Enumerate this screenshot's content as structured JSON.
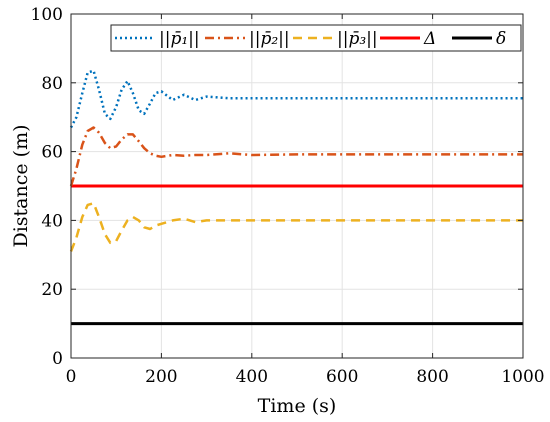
{
  "chart_data": {
    "type": "line",
    "xlabel": "Time (s)",
    "ylabel": "Distance (m)",
    "xlim": [
      0,
      1000
    ],
    "ylim": [
      0,
      100
    ],
    "xticks": [
      0,
      200,
      400,
      600,
      800,
      1000
    ],
    "yticks": [
      0,
      20,
      40,
      60,
      80,
      100
    ],
    "xtick_labels": [
      "0",
      "200",
      "400",
      "600",
      "800",
      "1000"
    ],
    "ytick_labels": [
      "0",
      "20",
      "40",
      "60",
      "80",
      "100"
    ],
    "grid": true,
    "legend_position": "top",
    "series": [
      {
        "name": "||p̄₁||",
        "color": "#0072BD",
        "style": "dotted",
        "x": [
          0,
          12,
          25,
          37,
          50,
          62,
          75,
          87,
          100,
          112,
          125,
          137,
          150,
          162,
          175,
          187,
          200,
          225,
          250,
          275,
          300,
          350,
          400,
          500,
          600,
          700,
          800,
          900,
          1000
        ],
        "y": [
          67,
          70,
          77,
          83,
          83.5,
          78,
          71,
          69.5,
          73,
          78,
          80.5,
          77,
          72,
          71,
          74,
          77,
          77.5,
          75,
          76.5,
          75,
          76,
          75.5,
          75.5,
          75.5,
          75.5,
          75.5,
          75.5,
          75.5,
          75.5
        ]
      },
      {
        "name": "||p̄₂||",
        "color": "#D95319",
        "style": "dashdot",
        "x": [
          0,
          12,
          25,
          37,
          50,
          62,
          75,
          87,
          100,
          112,
          125,
          137,
          150,
          162,
          175,
          187,
          200,
          225,
          250,
          275,
          300,
          350,
          400,
          500,
          600,
          700,
          800,
          900,
          1000
        ],
        "y": [
          50,
          55,
          62,
          66,
          67,
          65.5,
          62.5,
          61,
          61.5,
          63.5,
          65,
          65,
          63,
          61,
          59.5,
          58.8,
          58.5,
          59,
          58.8,
          59,
          59,
          59.5,
          59,
          59.2,
          59.2,
          59.2,
          59.2,
          59.2,
          59.2
        ]
      },
      {
        "name": "||p̄₃||",
        "color": "#EDB120",
        "style": "dashed",
        "x": [
          0,
          12,
          25,
          37,
          50,
          62,
          75,
          87,
          100,
          112,
          125,
          137,
          150,
          162,
          175,
          187,
          200,
          225,
          250,
          275,
          300,
          350,
          400,
          500,
          600,
          700,
          800,
          900,
          1000
        ],
        "y": [
          31,
          35,
          41,
          44.5,
          45,
          41,
          36,
          33.5,
          34,
          37,
          40,
          41,
          40,
          38,
          37.5,
          38.5,
          39,
          40,
          40.5,
          39.5,
          40,
          40,
          40,
          40,
          40,
          40,
          40,
          40,
          40
        ]
      },
      {
        "name": "Δ",
        "color": "#FF0000",
        "style": "solid",
        "x": [
          0,
          1000
        ],
        "y": [
          50,
          50
        ]
      },
      {
        "name": "δ",
        "color": "#000000",
        "style": "solid",
        "x": [
          0,
          1000
        ],
        "y": [
          10,
          10
        ]
      }
    ]
  }
}
